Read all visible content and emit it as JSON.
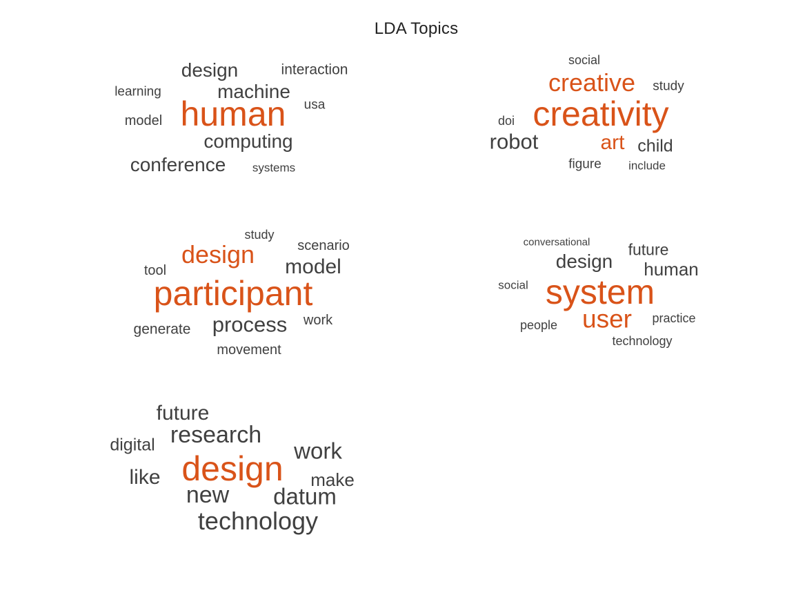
{
  "title": "LDA Topics",
  "colors": {
    "highlight": "#d95319",
    "normal": "#404040"
  },
  "chart_data": {
    "type": "wordcloud",
    "title": "LDA Topics",
    "layout": "subplot grid 3 rows x 2 columns",
    "topics": [
      {
        "words": [
          {
            "text": "human",
            "weight": 1.0,
            "highlight": true
          },
          {
            "text": "machine",
            "weight": 0.55,
            "highlight": false
          },
          {
            "text": "computing",
            "weight": 0.55,
            "highlight": false
          },
          {
            "text": "conference",
            "weight": 0.55,
            "highlight": false
          },
          {
            "text": "design",
            "weight": 0.55,
            "highlight": false
          },
          {
            "text": "interaction",
            "weight": 0.42,
            "highlight": false
          },
          {
            "text": "model",
            "weight": 0.4,
            "highlight": false
          },
          {
            "text": "learning",
            "weight": 0.38,
            "highlight": false
          },
          {
            "text": "usa",
            "weight": 0.38,
            "highlight": false
          },
          {
            "text": "systems",
            "weight": 0.34,
            "highlight": false
          }
        ]
      },
      {
        "words": [
          {
            "text": "creativity",
            "weight": 1.0,
            "highlight": true
          },
          {
            "text": "creative",
            "weight": 0.72,
            "highlight": true
          },
          {
            "text": "art",
            "weight": 0.6,
            "highlight": true
          },
          {
            "text": "robot",
            "weight": 0.62,
            "highlight": false
          },
          {
            "text": "child",
            "weight": 0.5,
            "highlight": false
          },
          {
            "text": "study",
            "weight": 0.38,
            "highlight": false
          },
          {
            "text": "figure",
            "weight": 0.38,
            "highlight": false
          },
          {
            "text": "social",
            "weight": 0.36,
            "highlight": false
          },
          {
            "text": "doi",
            "weight": 0.36,
            "highlight": false
          },
          {
            "text": "include",
            "weight": 0.33,
            "highlight": false
          }
        ]
      },
      {
        "words": [
          {
            "text": "participant",
            "weight": 1.0,
            "highlight": true
          },
          {
            "text": "design",
            "weight": 0.72,
            "highlight": true
          },
          {
            "text": "process",
            "weight": 0.62,
            "highlight": false
          },
          {
            "text": "model",
            "weight": 0.6,
            "highlight": false
          },
          {
            "text": "scenario",
            "weight": 0.4,
            "highlight": false
          },
          {
            "text": "generate",
            "weight": 0.42,
            "highlight": false
          },
          {
            "text": "work",
            "weight": 0.4,
            "highlight": false
          },
          {
            "text": "movement",
            "weight": 0.4,
            "highlight": false
          },
          {
            "text": "tool",
            "weight": 0.4,
            "highlight": false
          },
          {
            "text": "study",
            "weight": 0.36,
            "highlight": false
          }
        ]
      },
      {
        "words": [
          {
            "text": "system",
            "weight": 1.0,
            "highlight": true
          },
          {
            "text": "user",
            "weight": 0.74,
            "highlight": true
          },
          {
            "text": "design",
            "weight": 0.55,
            "highlight": false
          },
          {
            "text": "human",
            "weight": 0.52,
            "highlight": false
          },
          {
            "text": "future",
            "weight": 0.45,
            "highlight": false
          },
          {
            "text": "practice",
            "weight": 0.36,
            "highlight": false
          },
          {
            "text": "technology",
            "weight": 0.36,
            "highlight": false
          },
          {
            "text": "people",
            "weight": 0.35,
            "highlight": false
          },
          {
            "text": "social",
            "weight": 0.34,
            "highlight": false
          },
          {
            "text": "conversational",
            "weight": 0.3,
            "highlight": false
          }
        ]
      },
      {
        "words": [
          {
            "text": "design",
            "weight": 1.0,
            "highlight": true
          },
          {
            "text": "research",
            "weight": 0.68,
            "highlight": false
          },
          {
            "text": "technology",
            "weight": 0.72,
            "highlight": false
          },
          {
            "text": "work",
            "weight": 0.66,
            "highlight": false
          },
          {
            "text": "datum",
            "weight": 0.66,
            "highlight": false
          },
          {
            "text": "new",
            "weight": 0.68,
            "highlight": false
          },
          {
            "text": "future",
            "weight": 0.6,
            "highlight": false
          },
          {
            "text": "like",
            "weight": 0.6,
            "highlight": false
          },
          {
            "text": "make",
            "weight": 0.52,
            "highlight": false
          },
          {
            "text": "digital",
            "weight": 0.5,
            "highlight": false
          }
        ]
      }
    ]
  }
}
